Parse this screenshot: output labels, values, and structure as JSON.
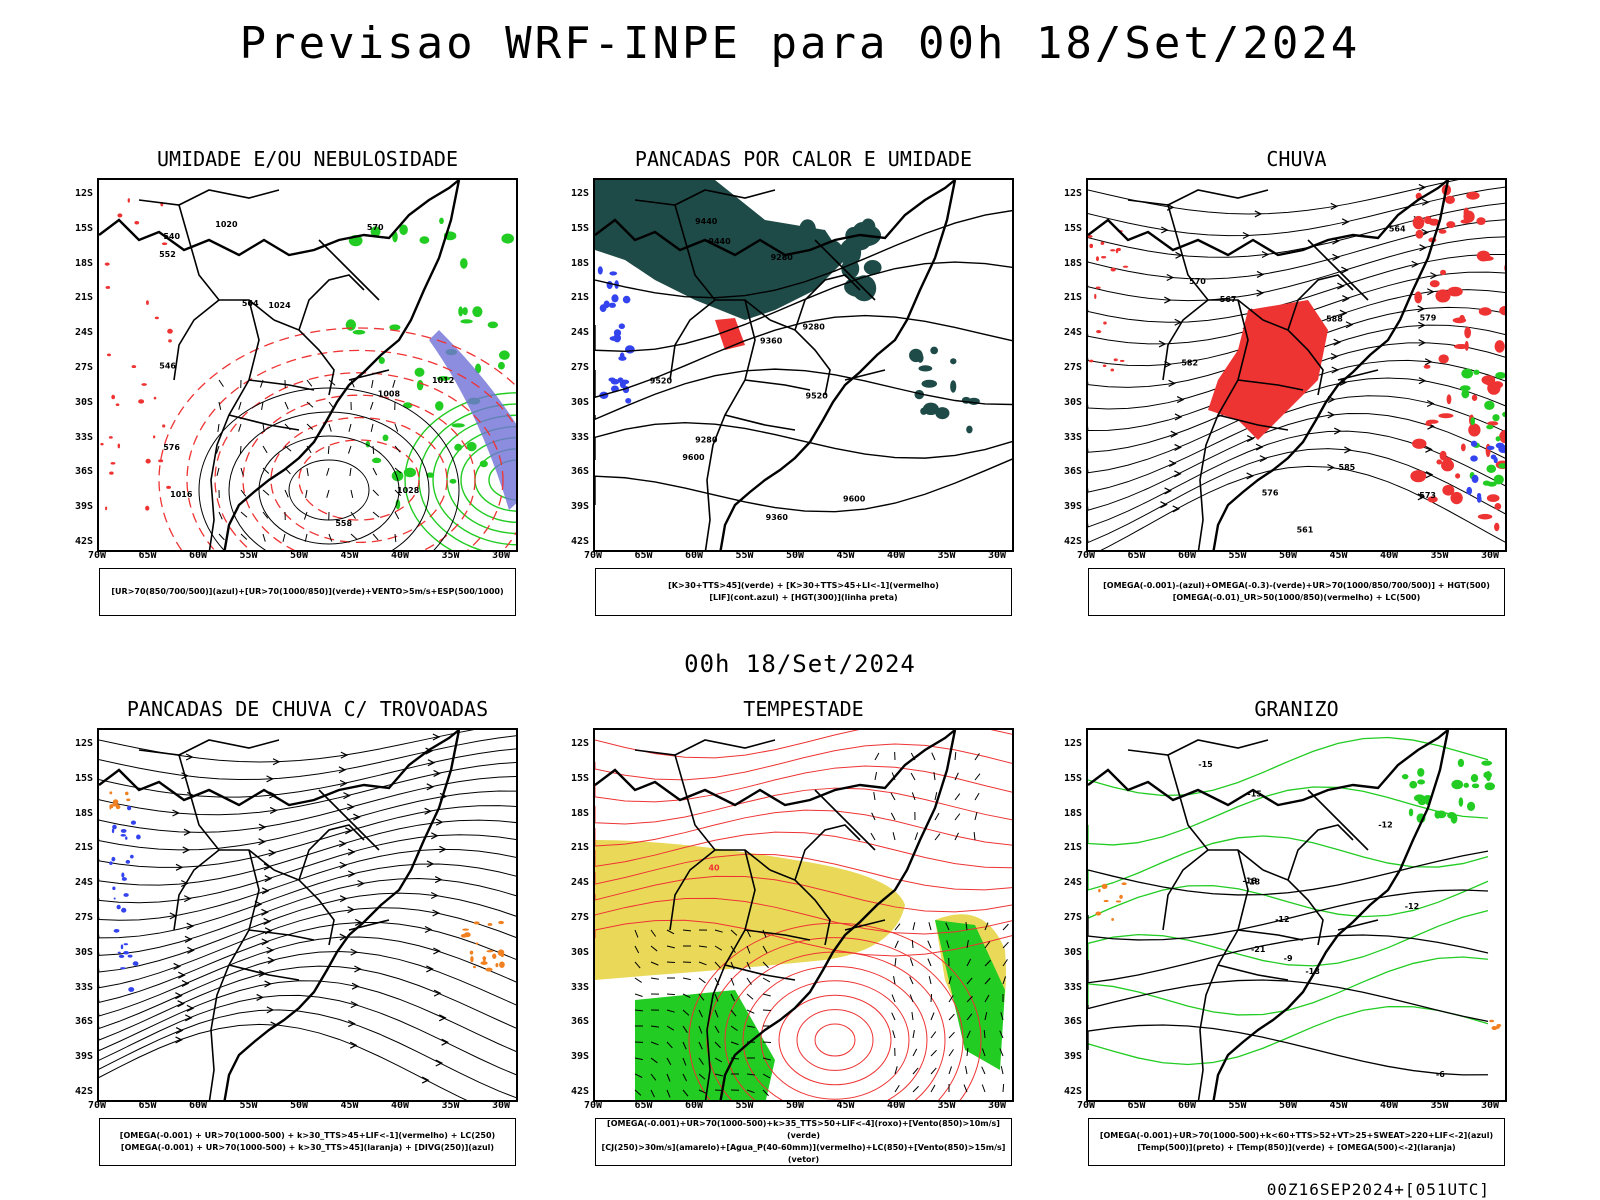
{
  "header": {
    "title": "Previsao WRF-INPE  para 00h 18/Set/2024",
    "subtitle": "00h 18/Set/2024",
    "footer": "00Z16SEP2024+[051UTC]"
  },
  "axes": {
    "lat_labels": [
      "12S",
      "15S",
      "18S",
      "21S",
      "24S",
      "27S",
      "30S",
      "33S",
      "36S",
      "39S",
      "42S"
    ],
    "lon_labels": [
      "70W",
      "65W",
      "60W",
      "55W",
      "50W",
      "45W",
      "40W",
      "35W",
      "30W"
    ]
  },
  "colors": {
    "green": "#22cc22",
    "red": "#ee3333",
    "blue": "#3344ee",
    "yellow": "#e6d23c",
    "darkteal": "#1e4a48",
    "orange": "#f08020",
    "purple": "#7070d8"
  },
  "panels": [
    {
      "title": "UMIDADE E/OU NEBULOSIDADE",
      "legend": [
        "[UR>70(850/700/500)](azul)+[UR>70(1000/850)](verde)+VENTO>5m/s+ESP(500/1000)"
      ],
      "contour_labels": [
        "1008",
        "1012",
        "1016",
        "1020",
        "1024",
        "1028",
        "576",
        "570",
        "564",
        "558",
        "552",
        "546",
        "540"
      ]
    },
    {
      "title": "PANCADAS POR CALOR E UMIDADE",
      "legend": [
        "[K>30+TTS>45](verde) + [K>30+TTS>45+LI<-1](vermelho)",
        "[LIF](cont.azul) + [HGT(300)](linha preta)"
      ],
      "contour_labels": [
        "9600",
        "9600",
        "9520",
        "9520",
        "9440",
        "9440",
        "9360",
        "9360",
        "9280",
        "9280",
        "9280"
      ]
    },
    {
      "title": "CHUVA",
      "legend": [
        "[OMEGA(-0.001)-(azul)+OMEGA(-0.3)-(verde)+UR>70(1000/850/700/500)] + HGT(500)",
        "[OMEGA(-0.01)_UR>50(1000/850)(vermelho) + LC(500)"
      ],
      "contour_labels": [
        "585",
        "582",
        "579",
        "576",
        "573",
        "570",
        "567",
        "564",
        "561",
        "588"
      ]
    },
    {
      "title": "PANCADAS DE CHUVA C/ TROVOADAS",
      "legend": [
        "[OMEGA(-0.001) + UR>70(1000-500) + k>30_TTS>45+LIF<-1](vermelho) + LC(250)",
        "[OMEGA(-0.001) + UR>70(1000-500) + k>30_TTS>45](laranja) + [DIVG(250)](azul)"
      ],
      "contour_labels": []
    },
    {
      "title": "TEMPESTADE",
      "legend": [
        "[OMEGA(-0.001)+UR>70(1000-500)+k>35_TTS>50+LIF<-4](roxo)+[Vento(850)>10m/s](verde)",
        "[CJ(250)>30m/s](amarelo)+[Agua_P(40-60mm)](vermelho)+LC(850)+[Vento(850)>15m/s](vetor)"
      ],
      "contour_labels": [
        "40"
      ]
    },
    {
      "title": "GRANIZO",
      "legend": [
        "[OMEGA(-0.001)+UR>70(1000-500)+k<60+TTS>52+VT>25+SWEAT>220+LIF<-2](azul)",
        "[Temp(500)](preto) + [Temp(850)](verde) + [OMEGA(500)<-2](laranja)"
      ],
      "contour_labels": [
        "-12",
        "-12",
        "-15",
        "-15",
        "-18",
        "-18",
        "-18",
        "-21",
        "-6",
        "-9",
        "-12"
      ]
    }
  ]
}
